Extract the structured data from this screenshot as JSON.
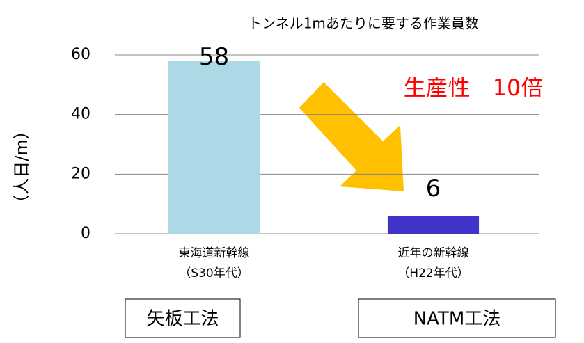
{
  "chart_data": {
    "type": "bar",
    "title": "トンネル1mあたりに要する作業員数",
    "y_label": "（人日/m）",
    "categories": [
      "東海道新幹線",
      "近年の新幹線"
    ],
    "category_sublabels": [
      "（S30年代）",
      "（H22年代）"
    ],
    "method_labels": [
      "矢板工法",
      "NATM工法"
    ],
    "values": [
      58,
      6
    ],
    "colors": [
      "#add8e6",
      "#3f33c8"
    ],
    "annotation": "生産性　10倍",
    "ylim": [
      0,
      60
    ],
    "yticks": [
      0,
      20,
      40,
      60
    ],
    "grid": true
  }
}
